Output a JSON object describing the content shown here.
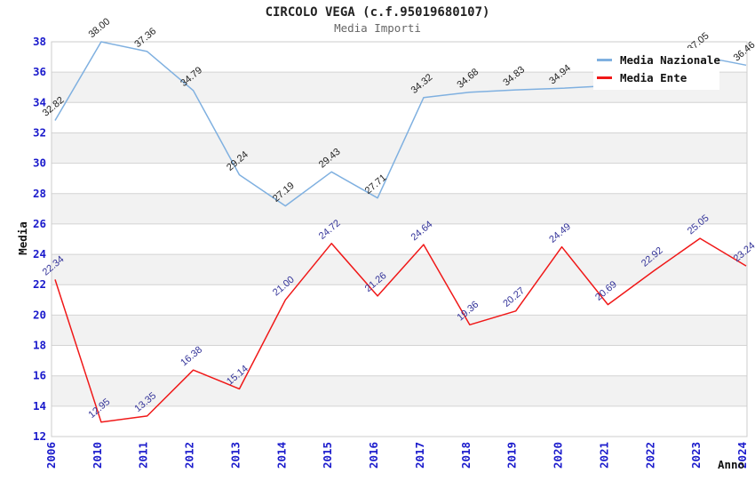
{
  "title": "CIRCOLO VEGA (c.f.95019680107)",
  "subtitle": "Media Importi",
  "axes": {
    "x_title": "Anno",
    "y_title": "Media"
  },
  "legend": {
    "position": "top-right",
    "items": [
      {
        "label": "Media Nazionale",
        "color": "#7fb0e0"
      },
      {
        "label": "Media Ente",
        "color": "#f01818"
      }
    ]
  },
  "colors": {
    "tick_label": "#1a1acc",
    "gridline": "#d4d4d4",
    "band": "#f2f2f2",
    "plot_border": "#cccccc",
    "axis_title": "#111111",
    "title": "#222222",
    "subtitle": "#666666"
  },
  "chart_data": {
    "type": "line",
    "title": "CIRCOLO VEGA (c.f.95019680107)",
    "subtitle": "Media Importi",
    "xlabel": "Anno",
    "ylabel": "Media",
    "categories": [
      "2006",
      "2010",
      "2011",
      "2012",
      "2013",
      "2014",
      "2015",
      "2016",
      "2017",
      "2018",
      "2019",
      "2020",
      "2021",
      "2022",
      "2023",
      "2024"
    ],
    "ylim": [
      12,
      38
    ],
    "y_tick_step": 2,
    "grid": true,
    "banded_background": true,
    "x_tick_rotation": -90,
    "point_label_rotation": -40,
    "series": [
      {
        "name": "Media Nazionale",
        "color": "#7fb0e0",
        "label_color": "#222222",
        "values": [
          32.82,
          38.0,
          37.36,
          34.79,
          29.24,
          27.19,
          29.43,
          27.71,
          34.32,
          34.68,
          34.83,
          34.94,
          35.1,
          36.2,
          37.05,
          36.46
        ],
        "labels": [
          "32.82",
          "38.00",
          "37.36",
          "34.79",
          "29.24",
          "27.19",
          "29.43",
          "27.71",
          "34.32",
          "34.68",
          "34.83",
          "34.94",
          "",
          "",
          "37.05",
          "36.46"
        ],
        "note": "2021 and 2022 point labels hidden behind legend box; their plotted values are estimated from the visible line"
      },
      {
        "name": "Media Ente",
        "color": "#f01818",
        "label_color": "#333399",
        "values": [
          22.34,
          12.95,
          13.35,
          16.38,
          15.14,
          21.0,
          24.72,
          21.26,
          24.64,
          19.36,
          20.27,
          24.49,
          20.69,
          22.92,
          25.05,
          23.24
        ],
        "labels": [
          "22.34",
          "12.95",
          "13.35",
          "16.38",
          "15.14",
          "21.00",
          "24.72",
          "21.26",
          "24.64",
          "19.36",
          "20.27",
          "24.49",
          "20.69",
          "22.92",
          "25.05",
          "23.24"
        ]
      }
    ]
  }
}
